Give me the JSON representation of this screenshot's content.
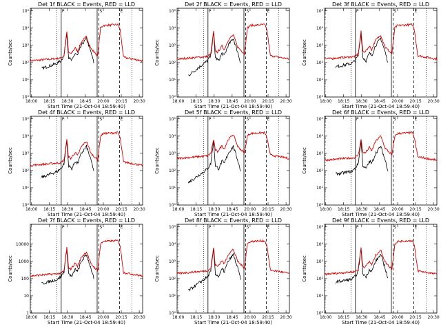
{
  "figure": {
    "xlabel": "Start Time (21-Oct-04 18:59:40)",
    "ylabel": "Counts/sec"
  },
  "chart_data": {
    "type": "line",
    "x_ticks": [
      "18:00",
      "18:15",
      "18:30",
      "18:45",
      "20:00",
      "20:15",
      "20:30"
    ],
    "y_ticks_log": [
      "10⁰",
      "10¹",
      "10²",
      "10³",
      "10⁴",
      "10⁵"
    ],
    "y_ticks_lin": [
      "1",
      "10",
      "100",
      "1000",
      "10000"
    ],
    "series_colors": {
      "events": "#000000",
      "lld": "#d40000"
    },
    "markers": [
      "P",
      "S",
      "E"
    ],
    "panels": [
      {
        "title": "Det 1f BLACK = Events, RED = LLD",
        "red_base": 2.1,
        "black_start": 1.65,
        "axis": "log"
      },
      {
        "title": "Det 2f BLACK = Events, RED = LLD",
        "red_base": 2.2,
        "black_start": 1.25,
        "axis": "log"
      },
      {
        "title": "Det 3f BLACK = Events, RED = LLD",
        "red_base": 2.2,
        "black_start": 1.75,
        "axis": "log"
      },
      {
        "title": "Det 4f BLACK = Events, RED = LLD",
        "red_base": 2.3,
        "black_start": 1.6,
        "axis": "log"
      },
      {
        "title": "Det 5f BLACK = Events, RED = LLD",
        "red_base": 2.7,
        "black_start": 1.3,
        "axis": "log"
      },
      {
        "title": "Det 6f BLACK = Events, RED = LLD",
        "red_base": 2.6,
        "black_start": 1.8,
        "axis": "log"
      },
      {
        "title": "Det 7f BLACK = Events, RED = LLD",
        "red_base": 2.15,
        "black_start": 1.7,
        "axis": "lin"
      },
      {
        "title": "Det 8f BLACK = Events, RED = LLD",
        "red_base": 2.3,
        "black_start": 1.3,
        "axis": "log"
      },
      {
        "title": "Det 9f BLACK = Events, RED = LLD",
        "red_base": 2.25,
        "black_start": 1.8,
        "axis": "log"
      }
    ]
  }
}
